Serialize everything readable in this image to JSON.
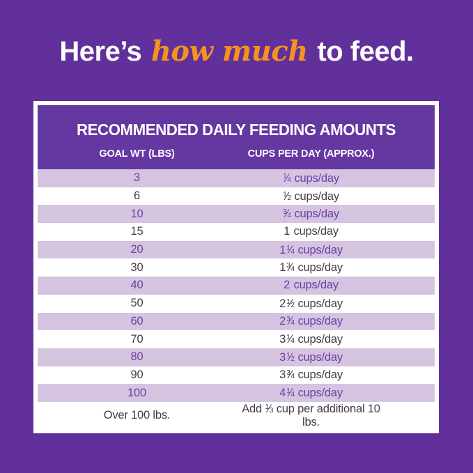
{
  "colors": {
    "page_bg": "#62309A",
    "card_header_bg": "#6537A0",
    "row_alt_bg": "#D5C4E0",
    "row_white_bg": "#FFFFFF",
    "purple_text": "#6B3FA4",
    "dark_text": "#433C48",
    "accent_orange": "#F6921E",
    "card_border": "#FFFFFF"
  },
  "title": {
    "prefix": "Here’s ",
    "highlight": "how much",
    "suffix": " to feed."
  },
  "table": {
    "heading": "RECOMMENDED DAILY FEEDING AMOUNTS",
    "columns": {
      "goal_wt": "GOAL WT (LBS)",
      "cups": "CUPS PER DAY (APPROX.)"
    },
    "rows": [
      {
        "goal_wt": "3",
        "num": "1",
        "den": "4",
        "unit": "cups/day"
      },
      {
        "goal_wt": "6",
        "num": "1",
        "den": "2",
        "unit": "cups/day"
      },
      {
        "goal_wt": "10",
        "num": "3",
        "den": "4",
        "unit": "cups/day"
      },
      {
        "goal_wt": "15",
        "whole": "1",
        "unit": "cups/day"
      },
      {
        "goal_wt": "20",
        "whole": "1",
        "num": "1",
        "den": "4",
        "unit": "cups/day"
      },
      {
        "goal_wt": "30",
        "whole": "1",
        "num": "3",
        "den": "4",
        "unit": "cups/day"
      },
      {
        "goal_wt": "40",
        "whole": "2",
        "unit": "cups/day"
      },
      {
        "goal_wt": "50",
        "whole": "2",
        "num": "1",
        "den": "2",
        "unit": "cups/day"
      },
      {
        "goal_wt": "60",
        "whole": "2",
        "num": "3",
        "den": "4",
        "unit": "cups/day"
      },
      {
        "goal_wt": "70",
        "whole": "3",
        "num": "1",
        "den": "4",
        "unit": "cups/day"
      },
      {
        "goal_wt": "80",
        "whole": "3",
        "num": "1",
        "den": "2",
        "unit": "cups/day"
      },
      {
        "goal_wt": "90",
        "whole": "3",
        "num": "3",
        "den": "4",
        "unit": "cups/day"
      },
      {
        "goal_wt": "100",
        "whole": "4",
        "num": "1",
        "den": "4",
        "unit": "cups/day"
      },
      {
        "goal_wt": "Over 100 lbs.",
        "prefix": "Add",
        "num": "1",
        "den": "3",
        "unit": "cup per additional 10 lbs."
      }
    ]
  },
  "chart_data": {
    "type": "table",
    "title": "RECOMMENDED DAILY FEEDING AMOUNTS",
    "columns": [
      "GOAL WT (LBS)",
      "CUPS PER DAY (APPROX.)"
    ],
    "rows": [
      [
        "3",
        "1/4 cups/day"
      ],
      [
        "6",
        "1/2 cups/day"
      ],
      [
        "10",
        "3/4 cups/day"
      ],
      [
        "15",
        "1 cups/day"
      ],
      [
        "20",
        "1 1/4 cups/day"
      ],
      [
        "30",
        "1 3/4 cups/day"
      ],
      [
        "40",
        "2 cups/day"
      ],
      [
        "50",
        "2 1/2 cups/day"
      ],
      [
        "60",
        "2 3/4 cups/day"
      ],
      [
        "70",
        "3 1/4 cups/day"
      ],
      [
        "80",
        "3 1/2 cups/day"
      ],
      [
        "90",
        "3 3/4 cups/day"
      ],
      [
        "100",
        "4 1/4 cups/day"
      ],
      [
        "Over 100 lbs.",
        "Add 1/3 cup per additional 10 lbs."
      ]
    ]
  }
}
